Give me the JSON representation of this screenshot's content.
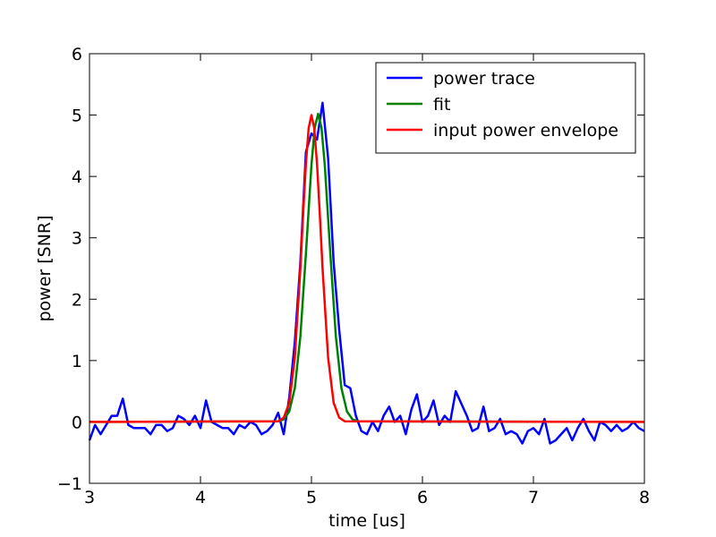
{
  "chart_data": {
    "type": "line",
    "xlabel": "time [us]",
    "ylabel": "power [SNR]",
    "xlim": [
      3,
      8
    ],
    "ylim": [
      -1,
      6
    ],
    "xticks": [
      3,
      4,
      5,
      6,
      7,
      8
    ],
    "yticks": [
      {
        "value": -1,
        "label": "−1"
      },
      0,
      1,
      2,
      3,
      4,
      5,
      6
    ],
    "legend": "upper right",
    "series": [
      {
        "name": "power trace",
        "color": "#0000ff",
        "x": [
          3.0,
          3.05,
          3.1,
          3.15,
          3.2,
          3.25,
          3.3,
          3.35,
          3.4,
          3.45,
          3.5,
          3.55,
          3.6,
          3.65,
          3.7,
          3.75,
          3.8,
          3.85,
          3.9,
          3.95,
          4.0,
          4.05,
          4.1,
          4.15,
          4.2,
          4.25,
          4.3,
          4.35,
          4.4,
          4.45,
          4.5,
          4.55,
          4.6,
          4.65,
          4.7,
          4.75,
          4.8,
          4.85,
          4.9,
          4.95,
          5.0,
          5.05,
          5.1,
          5.15,
          5.2,
          5.25,
          5.3,
          5.35,
          5.4,
          5.45,
          5.5,
          5.55,
          5.6,
          5.65,
          5.7,
          5.75,
          5.8,
          5.85,
          5.9,
          5.95,
          6.0,
          6.05,
          6.1,
          6.15,
          6.2,
          6.25,
          6.3,
          6.35,
          6.4,
          6.45,
          6.5,
          6.55,
          6.6,
          6.65,
          6.7,
          6.75,
          6.8,
          6.85,
          6.9,
          6.95,
          7.0,
          7.05,
          7.1,
          7.15,
          7.2,
          7.25,
          7.3,
          7.35,
          7.4,
          7.45,
          7.5,
          7.55,
          7.6,
          7.65,
          7.7,
          7.75,
          7.8,
          7.85,
          7.9,
          7.95,
          8.0
        ],
        "values": [
          -0.3,
          -0.05,
          -0.2,
          -0.05,
          0.1,
          0.1,
          0.38,
          -0.05,
          -0.1,
          -0.1,
          -0.1,
          -0.2,
          -0.05,
          -0.05,
          -0.15,
          -0.1,
          0.1,
          0.05,
          -0.05,
          0.1,
          -0.1,
          0.35,
          0.0,
          -0.05,
          -0.1,
          -0.1,
          -0.2,
          -0.05,
          -0.1,
          0.0,
          -0.05,
          -0.2,
          -0.15,
          -0.05,
          0.15,
          -0.2,
          0.4,
          1.3,
          2.6,
          4.4,
          4.7,
          4.6,
          5.2,
          4.3,
          2.6,
          1.5,
          0.6,
          0.55,
          0.1,
          -0.15,
          -0.2,
          0.0,
          -0.15,
          0.1,
          0.25,
          0.0,
          0.1,
          -0.2,
          0.2,
          0.45,
          0.0,
          0.1,
          0.35,
          -0.05,
          0.1,
          0.0,
          0.5,
          0.3,
          0.1,
          -0.15,
          -0.1,
          0.25,
          -0.15,
          -0.1,
          0.05,
          -0.2,
          -0.15,
          -0.2,
          -0.35,
          -0.15,
          -0.1,
          -0.2,
          0.05,
          -0.35,
          -0.3,
          -0.2,
          -0.1,
          -0.3,
          -0.1,
          0.05,
          -0.15,
          -0.3,
          0.0,
          -0.05,
          -0.15,
          -0.05,
          -0.15,
          -0.1,
          0.0,
          -0.1,
          -0.15
        ]
      },
      {
        "name": "fit",
        "color": "#008000",
        "x": [
          3,
          4.7,
          4.75,
          4.8,
          4.85,
          4.9,
          4.95,
          5.0,
          5.03,
          5.06,
          5.09,
          5.12,
          5.17,
          5.22,
          5.27,
          5.32,
          5.37,
          5.42,
          8
        ],
        "values": [
          0,
          0.01,
          0.04,
          0.17,
          0.55,
          1.39,
          2.74,
          4.19,
          4.8,
          5.02,
          4.8,
          4.19,
          2.74,
          1.39,
          0.55,
          0.17,
          0.04,
          0.01,
          0
        ]
      },
      {
        "name": "input power envelope",
        "color": "#ff0000",
        "x": [
          3,
          4.7,
          4.75,
          4.8,
          4.85,
          4.9,
          4.925,
          4.95,
          4.975,
          5.0,
          5.025,
          5.05,
          5.075,
          5.1,
          5.15,
          5.2,
          5.25,
          5.3,
          8
        ],
        "values": [
          0,
          0.01,
          0.07,
          0.31,
          1.05,
          2.5,
          3.39,
          4.21,
          4.79,
          5,
          4.79,
          4.21,
          3.39,
          2.5,
          1.05,
          0.31,
          0.07,
          0.01,
          0
        ]
      }
    ]
  }
}
